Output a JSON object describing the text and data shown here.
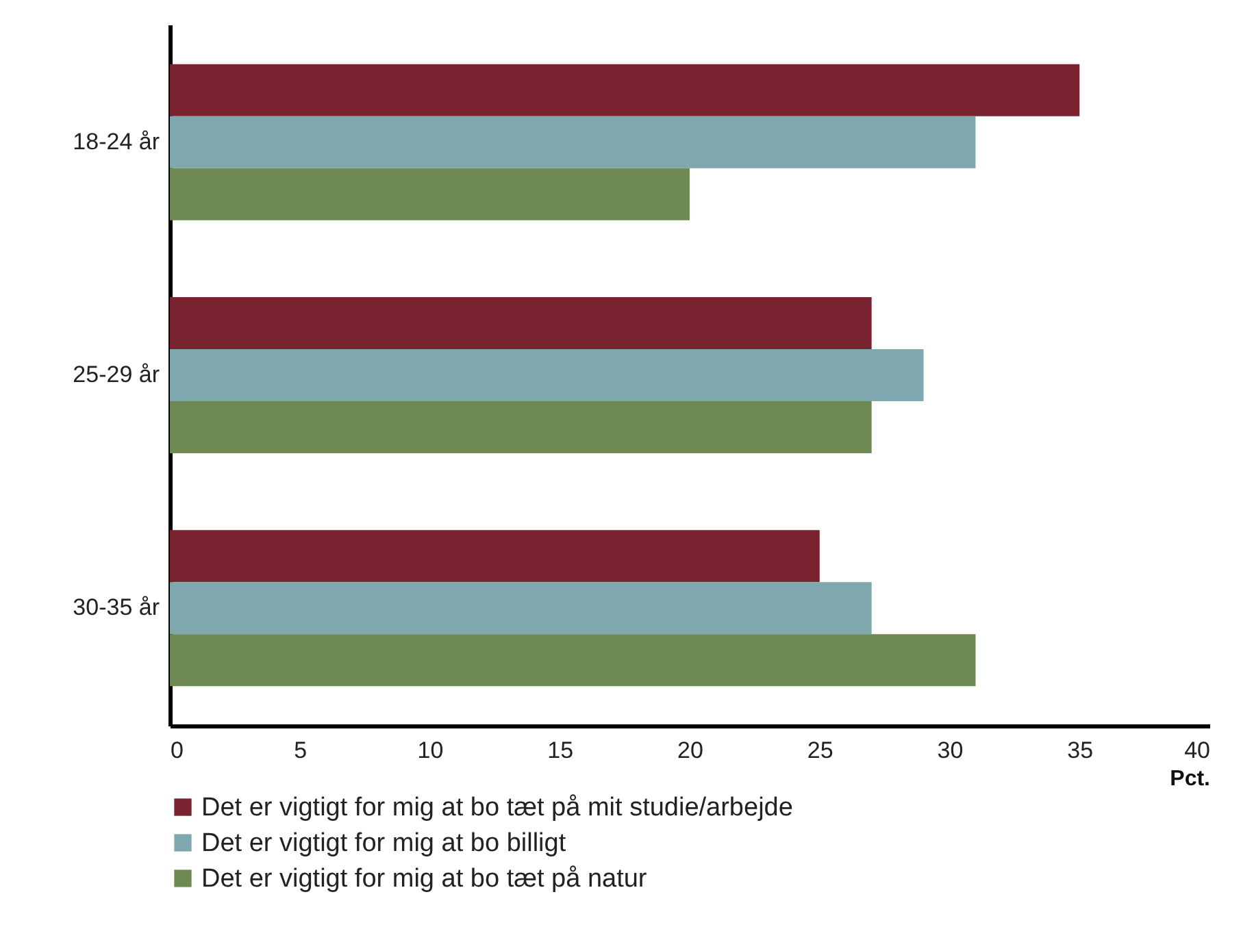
{
  "chart_data": {
    "type": "bar",
    "orientation": "horizontal",
    "categories": [
      "18-24 år",
      "25-29 år",
      "30-35 år"
    ],
    "series": [
      {
        "name": "Det er vigtigt for mig at bo tæt på mit studie/arbejde",
        "color": "#7a2330",
        "values": [
          35,
          27,
          25
        ]
      },
      {
        "name": "Det er vigtigt for mig at bo billigt",
        "color": "#7fa8ae",
        "values": [
          31,
          29,
          27
        ]
      },
      {
        "name": "Det er vigtigt for mig at bo tæt på natur",
        "color": "#6e8a52",
        "values": [
          20,
          27,
          31
        ]
      }
    ],
    "xlim": [
      0,
      40
    ],
    "xticks": [
      0,
      5,
      10,
      15,
      20,
      25,
      30,
      35,
      40
    ],
    "xlabel": "Pct.",
    "legend": "bottom",
    "grid": false
  }
}
